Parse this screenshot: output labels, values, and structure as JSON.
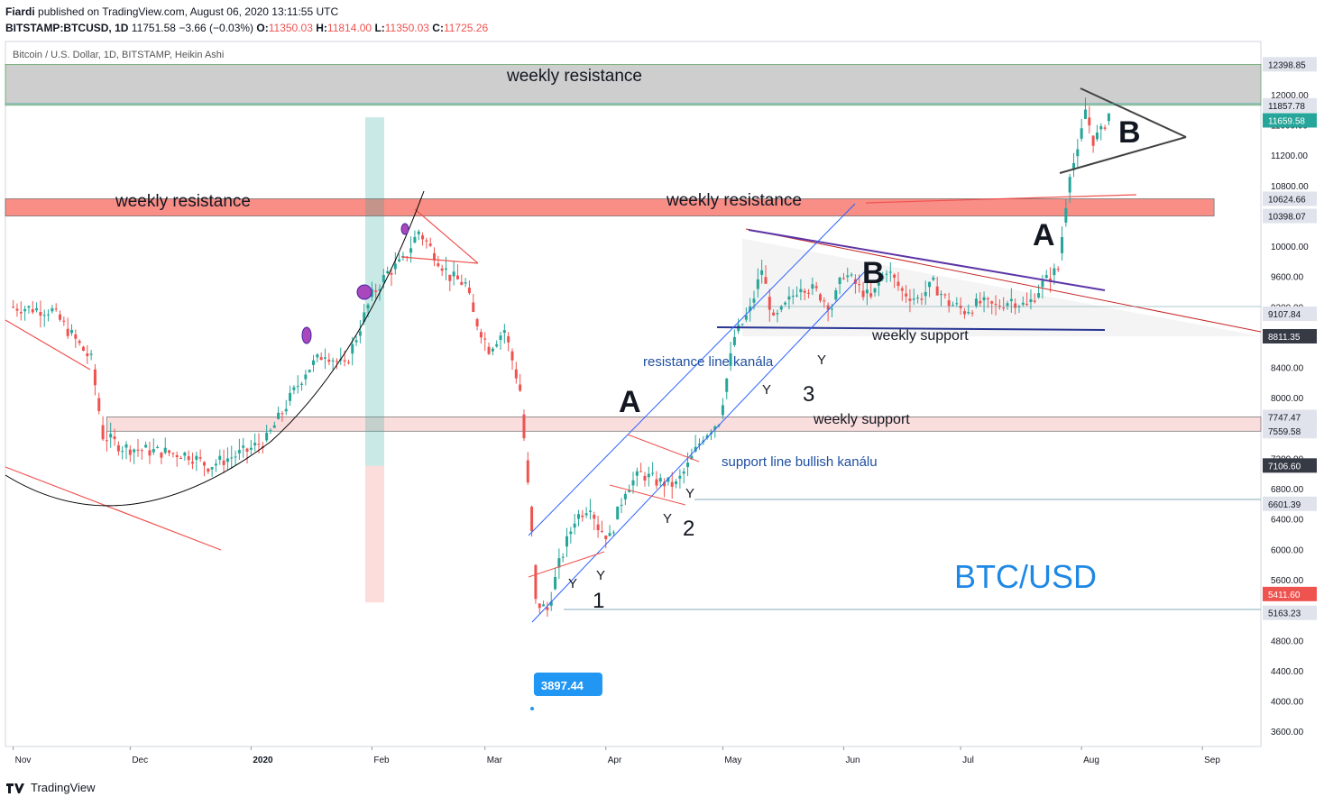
{
  "header": {
    "publisher": "Fiardi",
    "published_line": "published on TradingView.com, August 06, 2020 13:11:55 UTC",
    "symbol": "BITSTAMP:BTCUSD, 1D",
    "last": "11751.58",
    "change": "−3.66 (−0.03%)",
    "o_label": "O:",
    "o_value": "11350.03",
    "h_label": "H:",
    "h_value": "11814.00",
    "l_label": "L:",
    "l_value": "11350.03",
    "c_label": "C:",
    "c_value": "11725.26",
    "subtitle": "Bitcoin / U.S. Dollar, 1D, BITSTAMP, Heikin Ashi"
  },
  "footer": {
    "brand": "TradingView"
  },
  "colors": {
    "up": "#26a69a",
    "down": "#ef5350",
    "blue": "#1e88e5",
    "axis_tag": "#131722"
  },
  "chart_data": {
    "type": "candlestick",
    "title": "BTC/USD",
    "ylim": [
      3400,
      12700
    ],
    "y_ticks": [
      3600,
      4000,
      4400,
      4800,
      5200,
      5600,
      6000,
      6400,
      6800,
      7200,
      7600,
      8000,
      8400,
      8800,
      9200,
      9600,
      10000,
      10400,
      10800,
      11200,
      11600,
      12000
    ],
    "y_tick_labels": [
      "3600.00",
      "4000.00",
      "4400.00",
      "4800.00",
      "5200.00",
      "5600.00",
      "6000.00",
      "6400.00",
      "6800.00",
      "7200.00",
      "7600.00",
      "8000.00",
      "8400.00",
      "8800.00",
      "9200.00",
      "9600.00",
      "10000.00",
      "10400.00",
      "10800.00",
      "11200.00",
      "11600.00",
      "12000.00"
    ],
    "x_labels": [
      {
        "label": "Nov",
        "day": 0
      },
      {
        "label": "Dec",
        "day": 30
      },
      {
        "label": "2020",
        "day": 61
      },
      {
        "label": "Feb",
        "day": 92
      },
      {
        "label": "Mar",
        "day": 121
      },
      {
        "label": "Apr",
        "day": 152
      },
      {
        "label": "May",
        "day": 182
      },
      {
        "label": "Jun",
        "day": 213
      },
      {
        "label": "Jul",
        "day": 243
      },
      {
        "label": "Aug",
        "day": 274
      },
      {
        "label": "Sep",
        "day": 305
      }
    ],
    "day_range": [
      -2,
      320
    ],
    "price_tags": [
      {
        "value": 12398.85,
        "label": "12398.85",
        "style": "gray"
      },
      {
        "value": 11857.78,
        "label": "11857.78",
        "style": "gray"
      },
      {
        "value": 11659.58,
        "label": "11659.58",
        "style": "teal"
      },
      {
        "value": 10624.66,
        "label": "10624.66",
        "style": "gray"
      },
      {
        "value": 10398.07,
        "label": "10398.07",
        "style": "gray"
      },
      {
        "value": 9107.84,
        "label": "9107.84",
        "style": "gray"
      },
      {
        "value": 8811.35,
        "label": "8811.35",
        "style": "dark"
      },
      {
        "value": 7747.47,
        "label": "7747.47",
        "style": "gray"
      },
      {
        "value": 7559.58,
        "label": "7559.58",
        "style": "gray"
      },
      {
        "value": 7106.6,
        "label": "7106.60",
        "style": "dark"
      },
      {
        "value": 6601.39,
        "label": "6601.39",
        "style": "gray"
      },
      {
        "value": 5411.6,
        "label": "5411.60",
        "style": "red"
      },
      {
        "value": 5163.23,
        "label": "5163.23",
        "style": "gray"
      }
    ],
    "low_callout": {
      "value": 3897.44,
      "label": "3897.44",
      "day": 134
    },
    "zones": [
      {
        "label": "weekly resistance",
        "from": 11857.78,
        "to": 12398.85,
        "day_from": -2,
        "day_to": 320,
        "color": "gray"
      },
      {
        "label": "weekly resistance",
        "from": 10398.07,
        "to": 10624.66,
        "day_from": -2,
        "day_to": 308,
        "color": "red"
      },
      {
        "label": "weekly support",
        "from": 7559.58,
        "to": 7747.47,
        "day_from": 24,
        "day_to": 320,
        "color": "pink"
      }
    ],
    "annotations": {
      "wr1": "weekly resistance",
      "wr2": "weekly resistance",
      "wr3": "weekly resistance",
      "ws1": "weekly support",
      "ws2": "weekly support",
      "res_channel": "resistance line kanála",
      "sup_channel": "support line bullish kanálu",
      "A1": "A",
      "A2": "A",
      "B1": "B",
      "B2": "B",
      "n1": "1",
      "n2": "2",
      "n3": "3",
      "Y": "Y",
      "btcusd": "BTC/USD"
    },
    "series_ohlc_anchor_closes": [
      [
        0,
        9200
      ],
      [
        10,
        9150
      ],
      [
        20,
        8500
      ],
      [
        23,
        7500
      ],
      [
        28,
        7350
      ],
      [
        35,
        7300
      ],
      [
        45,
        7250
      ],
      [
        50,
        7100
      ],
      [
        55,
        7200
      ],
      [
        60,
        7300
      ],
      [
        65,
        7450
      ],
      [
        70,
        7900
      ],
      [
        75,
        8350
      ],
      [
        80,
        8600
      ],
      [
        85,
        8400
      ],
      [
        88,
        8800
      ],
      [
        92,
        9350
      ],
      [
        96,
        9650
      ],
      [
        100,
        9800
      ],
      [
        104,
        10200
      ],
      [
        108,
        9900
      ],
      [
        112,
        9600
      ],
      [
        116,
        9500
      ],
      [
        118,
        9100
      ],
      [
        122,
        8650
      ],
      [
        126,
        8900
      ],
      [
        130,
        8100
      ],
      [
        133,
        6200
      ],
      [
        134,
        5300
      ],
      [
        137,
        5200
      ],
      [
        140,
        5800
      ],
      [
        144,
        6400
      ],
      [
        148,
        6600
      ],
      [
        150,
        6300
      ],
      [
        153,
        6150
      ],
      [
        157,
        6800
      ],
      [
        161,
        7000
      ],
      [
        165,
        6900
      ],
      [
        170,
        6850
      ],
      [
        173,
        7100
      ],
      [
        177,
        7500
      ],
      [
        181,
        7700
      ],
      [
        185,
        8800
      ],
      [
        189,
        9150
      ],
      [
        192,
        9700
      ],
      [
        195,
        9000
      ],
      [
        198,
        9200
      ],
      [
        202,
        9500
      ],
      [
        206,
        9400
      ],
      [
        210,
        9200
      ],
      [
        213,
        9650
      ],
      [
        216,
        9500
      ],
      [
        220,
        9300
      ],
      [
        224,
        9700
      ],
      [
        228,
        9400
      ],
      [
        232,
        9300
      ],
      [
        236,
        9500
      ],
      [
        240,
        9250
      ],
      [
        244,
        9150
      ],
      [
        248,
        9250
      ],
      [
        252,
        9200
      ],
      [
        256,
        9300
      ],
      [
        260,
        9200
      ],
      [
        264,
        9500
      ],
      [
        268,
        9700
      ],
      [
        271,
        11000
      ],
      [
        273,
        11200
      ],
      [
        275,
        11800
      ],
      [
        277,
        11400
      ],
      [
        279,
        11500
      ],
      [
        281,
        11750
      ]
    ]
  }
}
